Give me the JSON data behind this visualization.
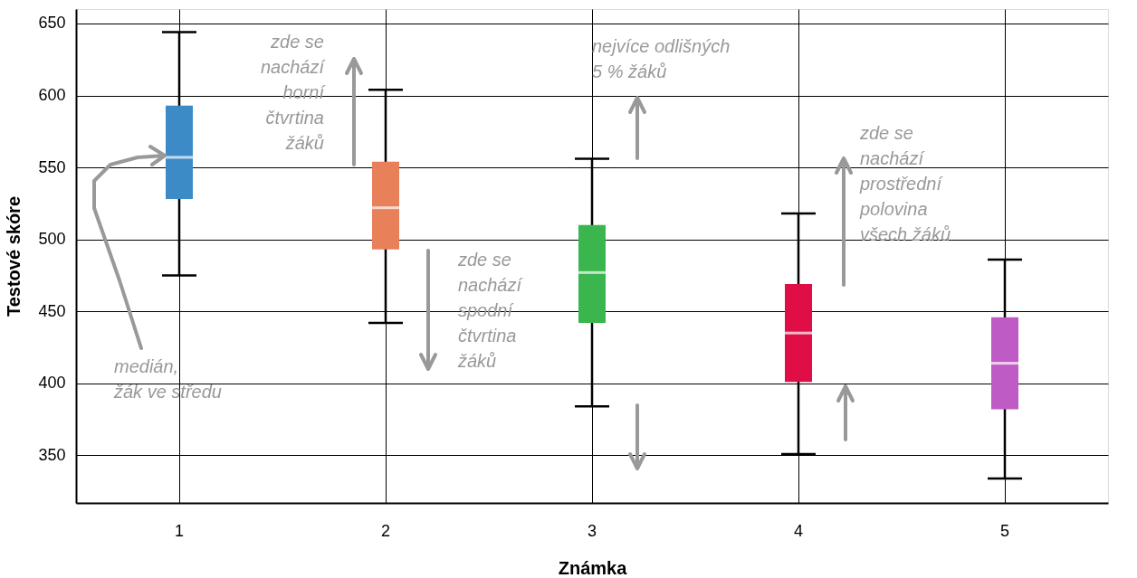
{
  "chart_data": {
    "type": "box",
    "xlabel": "Známka",
    "ylabel": "Testové skóre",
    "categories": [
      "1",
      "2",
      "3",
      "4",
      "5"
    ],
    "colors": [
      "#3d8bc6",
      "#e8805a",
      "#3bb54e",
      "#e00e47",
      "#bf5bc4"
    ],
    "boxes": [
      {
        "low": 475,
        "q1": 528,
        "median": 557,
        "q3": 593,
        "high": 644
      },
      {
        "low": 442,
        "q1": 493,
        "median": 522,
        "q3": 554,
        "high": 604
      },
      {
        "low": 384,
        "q1": 442,
        "median": 477,
        "q3": 510,
        "high": 556
      },
      {
        "low": 351,
        "q1": 401,
        "median": 435,
        "q3": 469,
        "high": 518
      },
      {
        "low": 334,
        "q1": 382,
        "median": 414,
        "q3": 446,
        "high": 486
      }
    ],
    "ylim": [
      317,
      660
    ],
    "yticks": [
      350,
      400,
      450,
      500,
      550,
      600,
      650
    ],
    "grid": true,
    "annotations": [
      "zde se\nnachází\nhorní\nčtvrtina\nžáků",
      "zde se\nnachází\nspodní\nčtvrtina\nžáků",
      "nejvíce odlišných\n5 % žáků",
      "zde se\nnachází\nprostřední\npolovina\nvšech žáků",
      "medián,\nžák ve středu"
    ]
  }
}
